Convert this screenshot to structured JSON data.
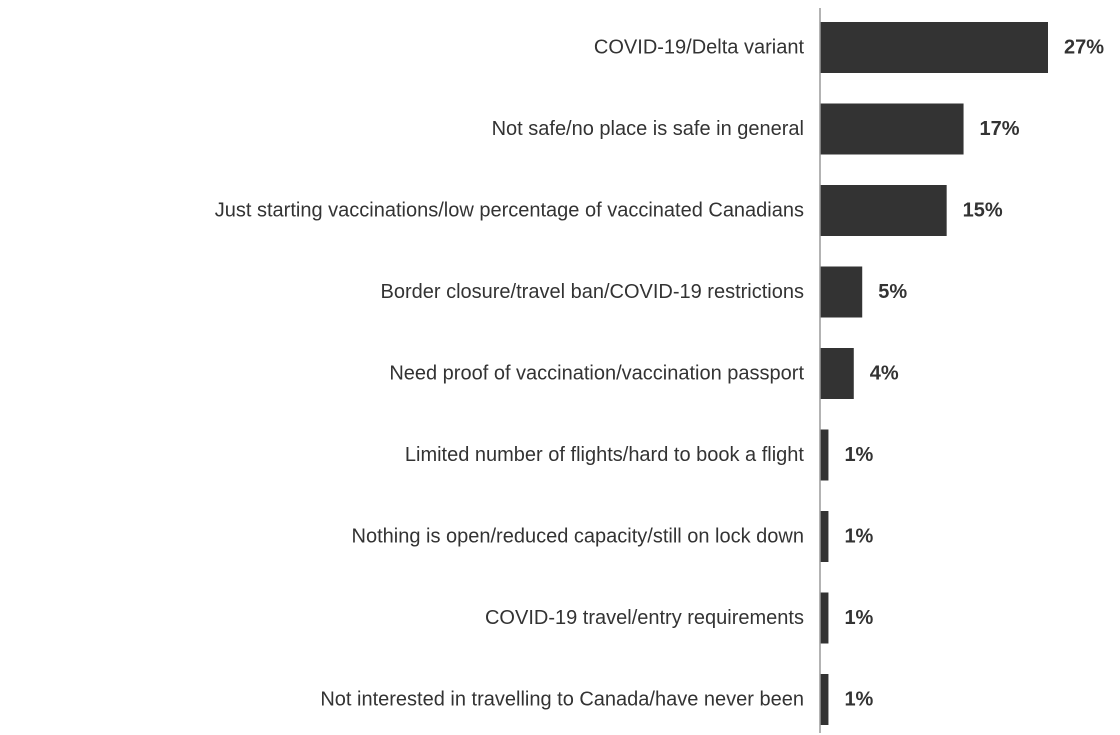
{
  "chart_data": {
    "type": "bar",
    "orientation": "horizontal",
    "categories": [
      "COVID-19/Delta variant",
      "Not safe/no place is safe in general",
      "Just starting vaccinations/low percentage of vaccinated Canadians",
      "Border closure/travel ban/COVID-19 restrictions",
      "Need proof of vaccination/vaccination passport",
      "Limited number of flights/hard to book a flight",
      "Nothing is open/reduced capacity/still on lock down",
      "COVID-19 travel/entry requirements",
      "Not interested in travelling to Canada/have never been"
    ],
    "values": [
      27,
      17,
      15,
      5,
      4,
      1,
      1,
      1,
      1
    ],
    "value_labels": [
      "27%",
      "17%",
      "15%",
      "5%",
      "4%",
      "1%",
      "1%",
      "1%",
      "1%"
    ],
    "unit": "%",
    "xlim": [
      0,
      27
    ],
    "grid": false,
    "legend": "none",
    "bar_color": "#333333",
    "axis_color": "#9a9a9a"
  }
}
